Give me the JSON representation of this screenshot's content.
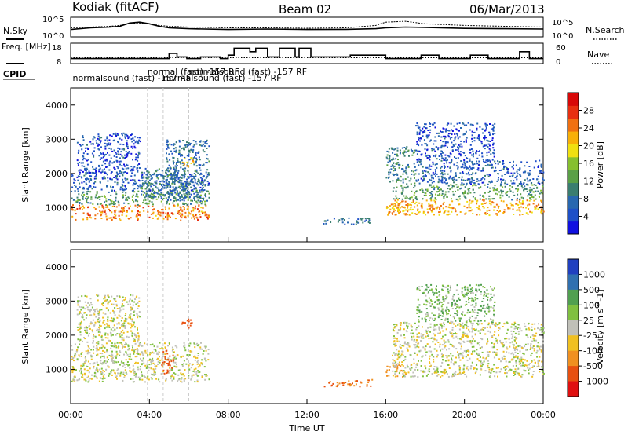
{
  "header": {
    "station": "Kodiak (fitACF)",
    "beam": "Beam 02",
    "date": "06/Mar/2013"
  },
  "colors": {
    "scatter_primary": "#b0b0a8",
    "noise_sky": "#000000",
    "dotted": "#000000"
  },
  "chart_data": [
    {
      "type": "line",
      "panel": "noise",
      "left_label": "N.Sky",
      "right_label": "N.Search",
      "left_ticks": [
        "10^5",
        "10^0"
      ],
      "right_ticks": [
        "10^5",
        "10^0"
      ],
      "x": [
        0,
        1,
        2,
        2.5,
        3,
        3.5,
        4,
        4.5,
        5,
        6,
        8,
        10,
        12,
        14,
        15.5,
        16,
        17,
        18,
        20,
        22,
        24
      ],
      "series": [
        {
          "name": "N.Sky",
          "values": [
            0.35,
            0.45,
            0.5,
            0.55,
            0.75,
            0.8,
            0.7,
            0.55,
            0.45,
            0.4,
            0.35,
            0.38,
            0.35,
            0.36,
            0.4,
            0.45,
            0.5,
            0.48,
            0.42,
            0.4,
            0.38
          ]
        },
        {
          "name": "N.Search",
          "values": [
            0.45,
            0.5,
            0.55,
            0.6,
            0.72,
            0.75,
            0.7,
            0.6,
            0.55,
            0.5,
            0.45,
            0.45,
            0.43,
            0.45,
            0.6,
            0.8,
            0.85,
            0.7,
            0.6,
            0.55,
            0.5
          ]
        }
      ]
    },
    {
      "type": "line",
      "panel": "frequency",
      "left_label": "Freq. [MHz]",
      "right_label": "Nave",
      "left_ticks": [
        18,
        8
      ],
      "right_ticks": [
        60,
        0
      ],
      "freq_x": [
        0,
        5.0,
        5.0,
        5.4,
        5.4,
        5.9,
        5.9,
        6.6,
        6.6,
        7.6,
        7.6,
        8.0,
        8.0,
        8.3,
        8.3,
        9.1,
        9.1,
        9.4,
        9.4,
        10.0,
        10.0,
        10.6,
        10.6,
        11.4,
        11.4,
        11.6,
        11.6,
        12.2,
        12.2,
        14.2,
        14.2,
        16.0,
        16.0,
        17.8,
        17.8,
        18.7,
        18.7,
        20.3,
        20.3,
        21.2,
        21.2,
        22.8,
        22.8,
        23.3,
        23.3,
        24
      ],
      "freq_y": [
        10,
        10,
        13,
        13,
        11,
        11,
        10,
        10,
        11,
        11,
        10,
        10,
        12,
        12,
        16,
        16,
        14,
        14,
        16,
        16,
        11,
        11,
        16,
        16,
        11,
        11,
        16,
        16,
        11,
        11,
        12,
        12,
        10,
        10,
        12,
        12,
        10,
        10,
        12,
        12,
        10,
        10,
        14,
        14,
        10,
        10
      ],
      "nave_level": 15
    },
    {
      "type": "table",
      "panel": "cpid",
      "label": "CPID",
      "entries": [
        {
          "x": 0.1,
          "row": 1,
          "text": "normalsound (fast) -157 RF"
        },
        {
          "x": 3.9,
          "row": 0,
          "text": "normal (fast) -157 RF"
        },
        {
          "x": 4.7,
          "row": 1,
          "text": "normalsound (fast) -157 RF"
        },
        {
          "x": 6.0,
          "row": 0,
          "text": "normalsound (fast) -157 RF"
        }
      ]
    },
    {
      "type": "heatmap",
      "panel": "power",
      "ylabel": "Slant Range [km]",
      "ylim": [
        0,
        4500
      ],
      "yticks": [
        1000,
        2000,
        3000,
        4000
      ],
      "xlim": [
        0,
        24
      ],
      "colorbar": {
        "label": "Power [dB]",
        "ticks": [
          4,
          8,
          12,
          16,
          20,
          24,
          28
        ],
        "colors": [
          "#1010e0",
          "#1e50c8",
          "#2868b0",
          "#3a7e70",
          "#5aa046",
          "#86c02e",
          "#f0e010",
          "#f8b008",
          "#f07010",
          "#e83010",
          "#d80808"
        ],
        "range": [
          0,
          32
        ]
      },
      "scatter_regions": [
        {
          "x0": 0.0,
          "x1": 7.0,
          "y0": 650,
          "y1": 1100,
          "level": 24
        },
        {
          "x0": 0.0,
          "x1": 7.0,
          "y0": 1100,
          "y1": 1500,
          "level": 12
        },
        {
          "x0": 0.0,
          "x1": 7.0,
          "y0": 1500,
          "y1": 2000,
          "level": 6
        },
        {
          "x0": 0.3,
          "x1": 3.5,
          "y0": 2000,
          "y1": 3200,
          "level": 5
        },
        {
          "x0": 3.5,
          "x1": 6.0,
          "y0": 1300,
          "y1": 2200,
          "level": 9
        },
        {
          "x0": 4.8,
          "x1": 7.0,
          "y0": 1200,
          "y1": 3000,
          "level": 8
        },
        {
          "x0": 5.6,
          "x1": 6.2,
          "y0": 2200,
          "y1": 2500,
          "level": 22
        },
        {
          "x0": 12.8,
          "x1": 15.3,
          "y0": 520,
          "y1": 720,
          "level": 8
        },
        {
          "x0": 16.0,
          "x1": 17.0,
          "y0": 800,
          "y1": 1150,
          "level": 22
        },
        {
          "x0": 16.3,
          "x1": 24.0,
          "y0": 800,
          "y1": 1250,
          "level": 22
        },
        {
          "x0": 16.3,
          "x1": 24.0,
          "y0": 1250,
          "y1": 1700,
          "level": 12
        },
        {
          "x0": 16.0,
          "x1": 17.5,
          "y0": 1700,
          "y1": 2800,
          "level": 10
        },
        {
          "x0": 17.5,
          "x1": 24.0,
          "y0": 1700,
          "y1": 2400,
          "level": 6
        },
        {
          "x0": 17.5,
          "x1": 21.5,
          "y0": 2400,
          "y1": 3500,
          "level": 5
        }
      ]
    },
    {
      "type": "heatmap",
      "panel": "velocity",
      "ylabel": "Slant Range [km]",
      "ylim": [
        0,
        4500
      ],
      "yticks": [
        1000,
        2000,
        3000,
        4000
      ],
      "xlim": [
        0,
        24
      ],
      "xlabel": "Time UT",
      "xticks": [
        "00:00",
        "04:00",
        "08:00",
        "12:00",
        "16:00",
        "20:00",
        "00:00"
      ],
      "colorbar": {
        "label": "Velocity [m s^-1]",
        "ticks": [
          "1000",
          "500",
          "100",
          "25",
          "-25",
          "-100",
          "-500",
          "-1000"
        ],
        "colors": [
          "#2040c0",
          "#3070b0",
          "#50a050",
          "#80c040",
          "#c0c0b8",
          "#f0c020",
          "#f09020",
          "#e85010",
          "#e01010"
        ]
      },
      "scatter_regions": [
        {
          "x0": 0.0,
          "x1": 7.0,
          "y0": 650,
          "y1": 1200,
          "level": 0
        },
        {
          "x0": 0.0,
          "x1": 7.0,
          "y0": 1200,
          "y1": 1800,
          "level": 0
        },
        {
          "x0": 0.3,
          "x1": 3.5,
          "y0": 1800,
          "y1": 3200,
          "level": 0
        },
        {
          "x0": 4.6,
          "x1": 5.2,
          "y0": 900,
          "y1": 1600,
          "level": -400
        },
        {
          "x0": 5.6,
          "x1": 6.2,
          "y0": 2200,
          "y1": 2500,
          "level": -500
        },
        {
          "x0": 12.8,
          "x1": 15.3,
          "y0": 520,
          "y1": 720,
          "level": -300
        },
        {
          "x0": 16.0,
          "x1": 17.0,
          "y0": 800,
          "y1": 1150,
          "level": -200
        },
        {
          "x0": 16.3,
          "x1": 24.0,
          "y0": 800,
          "y1": 2400,
          "level": 0
        },
        {
          "x0": 17.5,
          "x1": 21.5,
          "y0": 2400,
          "y1": 3500,
          "level": 60
        }
      ]
    }
  ]
}
